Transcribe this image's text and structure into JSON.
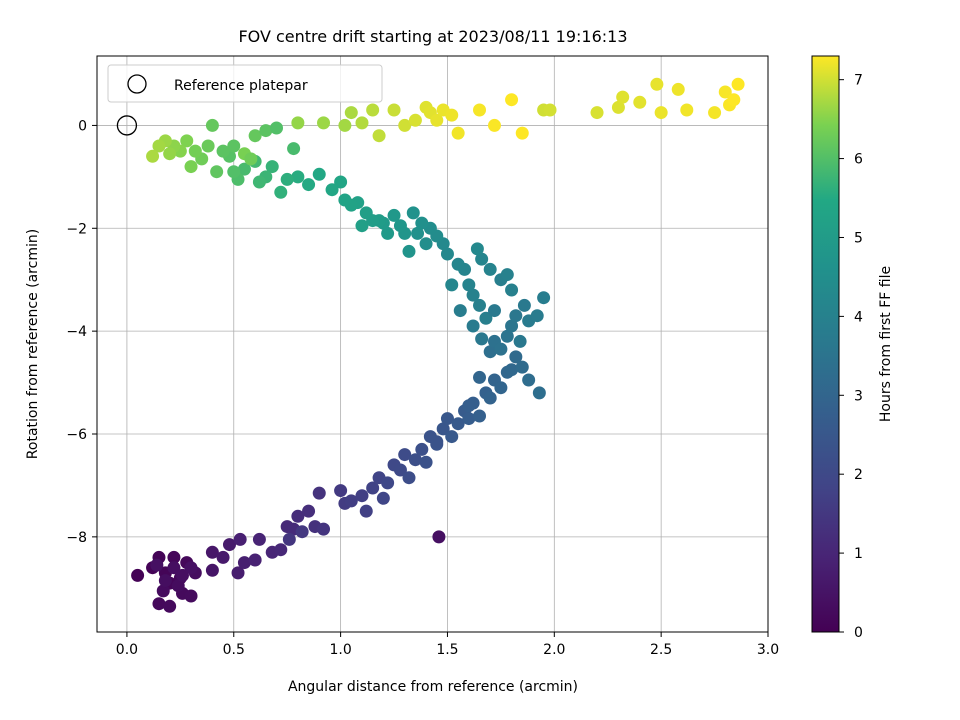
{
  "chart_data": {
    "type": "scatter",
    "title": "FOV centre drift starting at 2023/08/11 19:16:13",
    "xlabel": "Angular distance from reference (arcmin)",
    "ylabel": "Rotation from reference (arcmin)",
    "xlim": [
      -0.14,
      3.0
    ],
    "ylim": [
      -9.85,
      1.35
    ],
    "x_ticks": [
      0.0,
      0.5,
      1.0,
      1.5,
      2.0,
      2.5,
      3.0
    ],
    "x_tick_labels": [
      "0.0",
      "0.5",
      "1.0",
      "1.5",
      "2.0",
      "2.5",
      "3.0"
    ],
    "y_ticks": [
      -8,
      -6,
      -4,
      -2,
      0
    ],
    "y_tick_labels": [
      "−8",
      "−6",
      "−4",
      "−2",
      "0"
    ],
    "grid": true,
    "legend": {
      "position": "top-left",
      "entries": [
        {
          "label": "Reference platepar",
          "marker": "open-circle"
        }
      ]
    },
    "reference_point": {
      "x": 0.0,
      "y": 0.0
    },
    "colorbar": {
      "label": "Hours from first FF file",
      "colormap": "viridis",
      "range": [
        0,
        7.3
      ],
      "ticks": [
        0,
        1,
        2,
        3,
        4,
        5,
        6,
        7
      ],
      "tick_labels": [
        "0",
        "1",
        "2",
        "3",
        "4",
        "5",
        "6",
        "7"
      ]
    },
    "points": [
      [
        0.05,
        -8.75,
        0.02
      ],
      [
        0.12,
        -8.6,
        0.05
      ],
      [
        0.15,
        -8.4,
        0.08
      ],
      [
        0.18,
        -8.7,
        0.1
      ],
      [
        0.2,
        -8.9,
        0.12
      ],
      [
        0.22,
        -8.4,
        0.14
      ],
      [
        0.25,
        -8.8,
        0.16
      ],
      [
        0.28,
        -8.5,
        0.18
      ],
      [
        0.15,
        -9.3,
        0.2
      ],
      [
        0.2,
        -9.35,
        0.22
      ],
      [
        0.26,
        -9.1,
        0.24
      ],
      [
        0.3,
        -9.15,
        0.26
      ],
      [
        0.17,
        -9.05,
        0.28
      ],
      [
        0.24,
        -8.95,
        0.3
      ],
      [
        0.32,
        -8.7,
        0.32
      ],
      [
        0.18,
        -8.85,
        0.34
      ],
      [
        0.22,
        -8.6,
        0.36
      ],
      [
        0.26,
        -8.75,
        0.38
      ],
      [
        0.14,
        -8.55,
        0.4
      ],
      [
        0.3,
        -8.6,
        0.42
      ],
      [
        0.4,
        -8.65,
        0.55
      ],
      [
        0.4,
        -8.3,
        0.6
      ],
      [
        0.45,
        -8.4,
        0.65
      ],
      [
        0.48,
        -8.15,
        0.7
      ],
      [
        0.52,
        -8.7,
        0.75
      ],
      [
        0.55,
        -8.5,
        0.8
      ],
      [
        0.53,
        -8.05,
        0.85
      ],
      [
        0.6,
        -8.45,
        0.9
      ],
      [
        0.62,
        -8.05,
        0.95
      ],
      [
        0.68,
        -8.3,
        1.0
      ],
      [
        0.72,
        -8.25,
        1.05
      ],
      [
        0.75,
        -7.8,
        1.1
      ],
      [
        0.78,
        -7.85,
        1.15
      ],
      [
        0.8,
        -7.6,
        1.2
      ],
      [
        0.85,
        -7.5,
        1.25
      ],
      [
        0.88,
        -7.8,
        1.3
      ],
      [
        0.9,
        -7.15,
        1.35
      ],
      [
        0.92,
        -7.85,
        1.4
      ],
      [
        0.76,
        -8.05,
        1.45
      ],
      [
        0.82,
        -7.9,
        1.5
      ],
      [
        1.0,
        -7.1,
        1.55
      ],
      [
        1.02,
        -7.35,
        1.6
      ],
      [
        1.05,
        -7.3,
        1.65
      ],
      [
        1.1,
        -7.2,
        1.7
      ],
      [
        1.12,
        -7.5,
        1.75
      ],
      [
        1.15,
        -7.05,
        1.8
      ],
      [
        1.18,
        -6.85,
        1.85
      ],
      [
        1.2,
        -7.25,
        1.9
      ],
      [
        1.22,
        -6.95,
        1.95
      ],
      [
        1.25,
        -6.6,
        2.0
      ],
      [
        1.28,
        -6.7,
        2.05
      ],
      [
        1.3,
        -6.4,
        2.1
      ],
      [
        1.32,
        -6.85,
        2.15
      ],
      [
        1.35,
        -6.5,
        2.2
      ],
      [
        1.38,
        -6.3,
        2.25
      ],
      [
        1.4,
        -6.55,
        2.3
      ],
      [
        1.42,
        -6.05,
        2.35
      ],
      [
        1.45,
        -6.2,
        2.4
      ],
      [
        1.48,
        -5.9,
        2.45
      ],
      [
        1.5,
        -5.7,
        2.5
      ],
      [
        1.46,
        -8.0,
        0.4
      ],
      [
        1.52,
        -6.05,
        2.55
      ],
      [
        1.55,
        -5.8,
        2.6
      ],
      [
        1.58,
        -5.55,
        2.65
      ],
      [
        1.6,
        -5.7,
        2.7
      ],
      [
        1.62,
        -5.4,
        2.75
      ],
      [
        1.65,
        -5.65,
        2.8
      ],
      [
        1.68,
        -5.2,
        2.85
      ],
      [
        1.7,
        -5.3,
        2.9
      ],
      [
        1.72,
        -4.95,
        2.95
      ],
      [
        1.75,
        -5.1,
        3.0
      ],
      [
        1.78,
        -4.8,
        3.05
      ],
      [
        1.8,
        -4.75,
        3.1
      ],
      [
        1.82,
        -4.5,
        3.15
      ],
      [
        1.85,
        -4.7,
        3.2
      ],
      [
        1.88,
        -4.95,
        3.25
      ],
      [
        1.93,
        -5.2,
        3.3
      ],
      [
        1.65,
        -4.9,
        3.0
      ],
      [
        1.6,
        -5.45,
        2.75
      ],
      [
        1.45,
        -6.15,
        2.35
      ],
      [
        1.7,
        -4.4,
        3.35
      ],
      [
        1.72,
        -4.2,
        3.4
      ],
      [
        1.75,
        -4.35,
        3.45
      ],
      [
        1.78,
        -4.1,
        3.5
      ],
      [
        1.8,
        -3.9,
        3.55
      ],
      [
        1.82,
        -3.7,
        3.6
      ],
      [
        1.84,
        -4.2,
        3.65
      ],
      [
        1.86,
        -3.5,
        3.7
      ],
      [
        1.88,
        -3.8,
        3.75
      ],
      [
        1.92,
        -3.7,
        3.8
      ],
      [
        1.95,
        -3.35,
        3.85
      ],
      [
        1.68,
        -3.75,
        3.9
      ],
      [
        1.65,
        -3.5,
        3.95
      ],
      [
        1.62,
        -3.3,
        4.0
      ],
      [
        1.6,
        -3.1,
        4.05
      ],
      [
        1.58,
        -2.8,
        4.1
      ],
      [
        1.55,
        -2.7,
        4.15
      ],
      [
        1.52,
        -3.1,
        4.2
      ],
      [
        1.5,
        -2.5,
        4.25
      ],
      [
        1.48,
        -2.3,
        4.3
      ],
      [
        1.72,
        -3.6,
        3.7
      ],
      [
        1.75,
        -3.0,
        3.9
      ],
      [
        1.78,
        -2.9,
        4.0
      ],
      [
        1.7,
        -2.8,
        4.05
      ],
      [
        1.66,
        -2.6,
        4.15
      ],
      [
        1.64,
        -2.4,
        4.25
      ],
      [
        1.56,
        -3.6,
        3.85
      ],
      [
        1.62,
        -3.9,
        3.75
      ],
      [
        1.66,
        -4.15,
        3.65
      ],
      [
        1.8,
        -3.2,
        3.95
      ],
      [
        1.45,
        -2.15,
        4.4
      ],
      [
        1.42,
        -2.0,
        4.45
      ],
      [
        1.4,
        -2.3,
        4.5
      ],
      [
        1.38,
        -1.9,
        4.55
      ],
      [
        1.36,
        -2.1,
        4.6
      ],
      [
        1.34,
        -1.7,
        4.65
      ],
      [
        1.32,
        -2.45,
        4.7
      ],
      [
        1.3,
        -2.1,
        4.75
      ],
      [
        1.28,
        -1.95,
        4.8
      ],
      [
        1.25,
        -1.75,
        4.85
      ],
      [
        1.22,
        -2.1,
        4.9
      ],
      [
        1.2,
        -1.9,
        4.95
      ],
      [
        1.18,
        -1.85,
        5.0
      ],
      [
        1.15,
        -1.85,
        5.05
      ],
      [
        1.12,
        -1.7,
        5.1
      ],
      [
        1.1,
        -1.95,
        5.15
      ],
      [
        1.08,
        -1.5,
        5.2
      ],
      [
        1.05,
        -1.55,
        5.25
      ],
      [
        1.02,
        -1.45,
        5.3
      ],
      [
        1.0,
        -1.1,
        5.35
      ],
      [
        0.96,
        -1.25,
        5.4
      ],
      [
        0.9,
        -0.95,
        5.45
      ],
      [
        0.85,
        -1.15,
        5.5
      ],
      [
        0.8,
        -1.0,
        5.55
      ],
      [
        0.75,
        -1.05,
        5.6
      ],
      [
        0.72,
        -1.3,
        5.65
      ],
      [
        0.68,
        -0.8,
        5.7
      ],
      [
        0.65,
        -1.0,
        5.75
      ],
      [
        0.62,
        -1.1,
        5.8
      ],
      [
        0.6,
        -0.7,
        5.85
      ],
      [
        0.55,
        -0.85,
        5.9
      ],
      [
        0.52,
        -1.05,
        5.95
      ],
      [
        0.5,
        -0.9,
        6.0
      ],
      [
        0.48,
        -0.6,
        6.05
      ],
      [
        0.45,
        -0.5,
        6.1
      ],
      [
        0.42,
        -0.9,
        6.15
      ],
      [
        0.4,
        -0.0,
        6.2
      ],
      [
        0.38,
        -0.4,
        6.25
      ],
      [
        0.35,
        -0.65,
        6.3
      ],
      [
        0.32,
        -0.5,
        6.35
      ],
      [
        0.3,
        -0.8,
        6.4
      ],
      [
        0.28,
        -0.3,
        6.45
      ],
      [
        0.25,
        -0.5,
        6.5
      ],
      [
        0.22,
        -0.4,
        6.55
      ],
      [
        0.2,
        -0.55,
        6.6
      ],
      [
        0.18,
        -0.3,
        6.65
      ],
      [
        0.15,
        -0.4,
        6.7
      ],
      [
        0.12,
        -0.6,
        6.75
      ],
      [
        0.55,
        -0.55,
        6.4
      ],
      [
        0.58,
        -0.65,
        6.3
      ],
      [
        0.6,
        -0.2,
        6.2
      ],
      [
        0.65,
        -0.1,
        6.1
      ],
      [
        0.7,
        -0.05,
        6.0
      ],
      [
        0.78,
        -0.45,
        5.9
      ],
      [
        0.5,
        -0.4,
        6.1
      ],
      [
        0.8,
        0.05,
        6.6
      ],
      [
        0.92,
        0.05,
        6.65
      ],
      [
        1.02,
        0.0,
        6.7
      ],
      [
        1.05,
        0.25,
        6.75
      ],
      [
        1.1,
        0.05,
        6.8
      ],
      [
        1.15,
        0.3,
        6.85
      ],
      [
        1.18,
        -0.2,
        6.9
      ],
      [
        1.25,
        0.3,
        6.95
      ],
      [
        1.3,
        0.0,
        7.0
      ],
      [
        1.35,
        0.1,
        7.05
      ],
      [
        1.4,
        0.35,
        7.1
      ],
      [
        1.42,
        0.25,
        7.12
      ],
      [
        1.45,
        0.1,
        7.15
      ],
      [
        1.48,
        0.3,
        7.18
      ],
      [
        1.52,
        0.2,
        7.2
      ],
      [
        1.55,
        -0.15,
        7.22
      ],
      [
        1.65,
        0.3,
        7.25
      ],
      [
        1.72,
        0.0,
        7.28
      ],
      [
        1.8,
        0.5,
        7.3
      ],
      [
        1.85,
        -0.15,
        7.3
      ],
      [
        1.95,
        0.3,
        7.0
      ],
      [
        1.98,
        0.3,
        7.02
      ],
      [
        2.2,
        0.25,
        7.05
      ],
      [
        2.3,
        0.35,
        7.08
      ],
      [
        2.32,
        0.55,
        7.1
      ],
      [
        2.4,
        0.45,
        7.12
      ],
      [
        2.48,
        0.8,
        7.15
      ],
      [
        2.5,
        0.25,
        7.18
      ],
      [
        2.58,
        0.7,
        7.2
      ],
      [
        2.62,
        0.3,
        7.22
      ],
      [
        2.75,
        0.25,
        7.24
      ],
      [
        2.8,
        0.65,
        7.26
      ],
      [
        2.82,
        0.4,
        7.28
      ],
      [
        2.84,
        0.5,
        7.3
      ],
      [
        2.86,
        0.8,
        7.3
      ]
    ]
  }
}
